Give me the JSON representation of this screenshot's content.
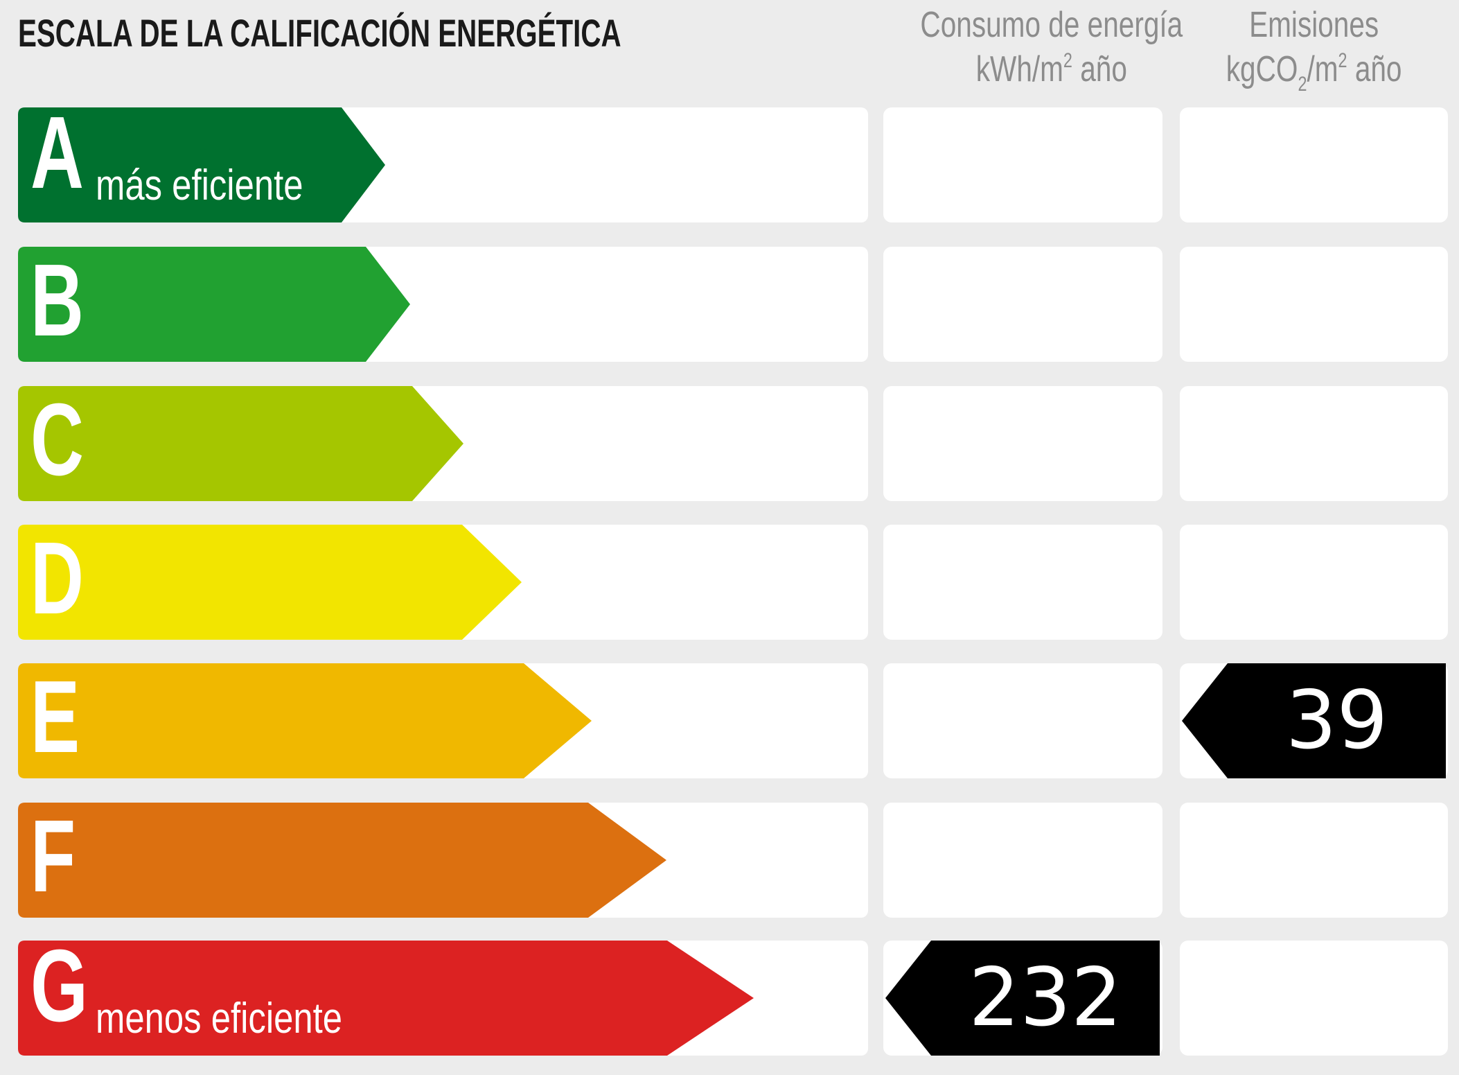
{
  "title": "ESCALA DE LA CALIFICACIÓN ENERGÉTICA",
  "columns": {
    "energy": {
      "line1": "Consumo de energía",
      "line2_pre": "kWh/m",
      "line2_sup": "2",
      "line2_post": " año"
    },
    "emissions": {
      "line1": "Emisiones",
      "line2_pre": "kgCO",
      "line2_sub": "2",
      "line2_mid": "/m",
      "line2_sup": "2",
      "line2_post": " año"
    }
  },
  "ratings": [
    {
      "letter": "A",
      "label": "más eficiente",
      "color": "#00712f"
    },
    {
      "letter": "B",
      "label": "",
      "color": "#21a131"
    },
    {
      "letter": "C",
      "label": "",
      "color": "#a5c600"
    },
    {
      "letter": "D",
      "label": "",
      "color": "#f2e500"
    },
    {
      "letter": "E",
      "label": "",
      "color": "#f0b800"
    },
    {
      "letter": "F",
      "label": "",
      "color": "#dc7010"
    },
    {
      "letter": "G",
      "label": "menos eficiente",
      "color": "#dc2222"
    }
  ],
  "indicators": {
    "energy": {
      "value": "232",
      "rating": "G"
    },
    "emissions": {
      "value": "39",
      "rating": "E"
    }
  },
  "chart_data": {
    "type": "bar",
    "title": "ESCALA DE LA CALIFICACIÓN ENERGÉTICA",
    "categories": [
      "A",
      "B",
      "C",
      "D",
      "E",
      "F",
      "G"
    ],
    "category_labels": {
      "A": "más eficiente",
      "G": "menos eficiente"
    },
    "colors": [
      "#00712f",
      "#21a131",
      "#a5c600",
      "#f2e500",
      "#f0b800",
      "#dc7010",
      "#dc2222"
    ],
    "series": [
      {
        "name": "Consumo de energía (kWh/m² año)",
        "value": 232,
        "rating": "G"
      },
      {
        "name": "Emisiones (kgCO₂/m² año)",
        "value": 39,
        "rating": "E"
      }
    ],
    "xlabel": "",
    "ylabel": "",
    "grid": false,
    "legend": "none"
  }
}
